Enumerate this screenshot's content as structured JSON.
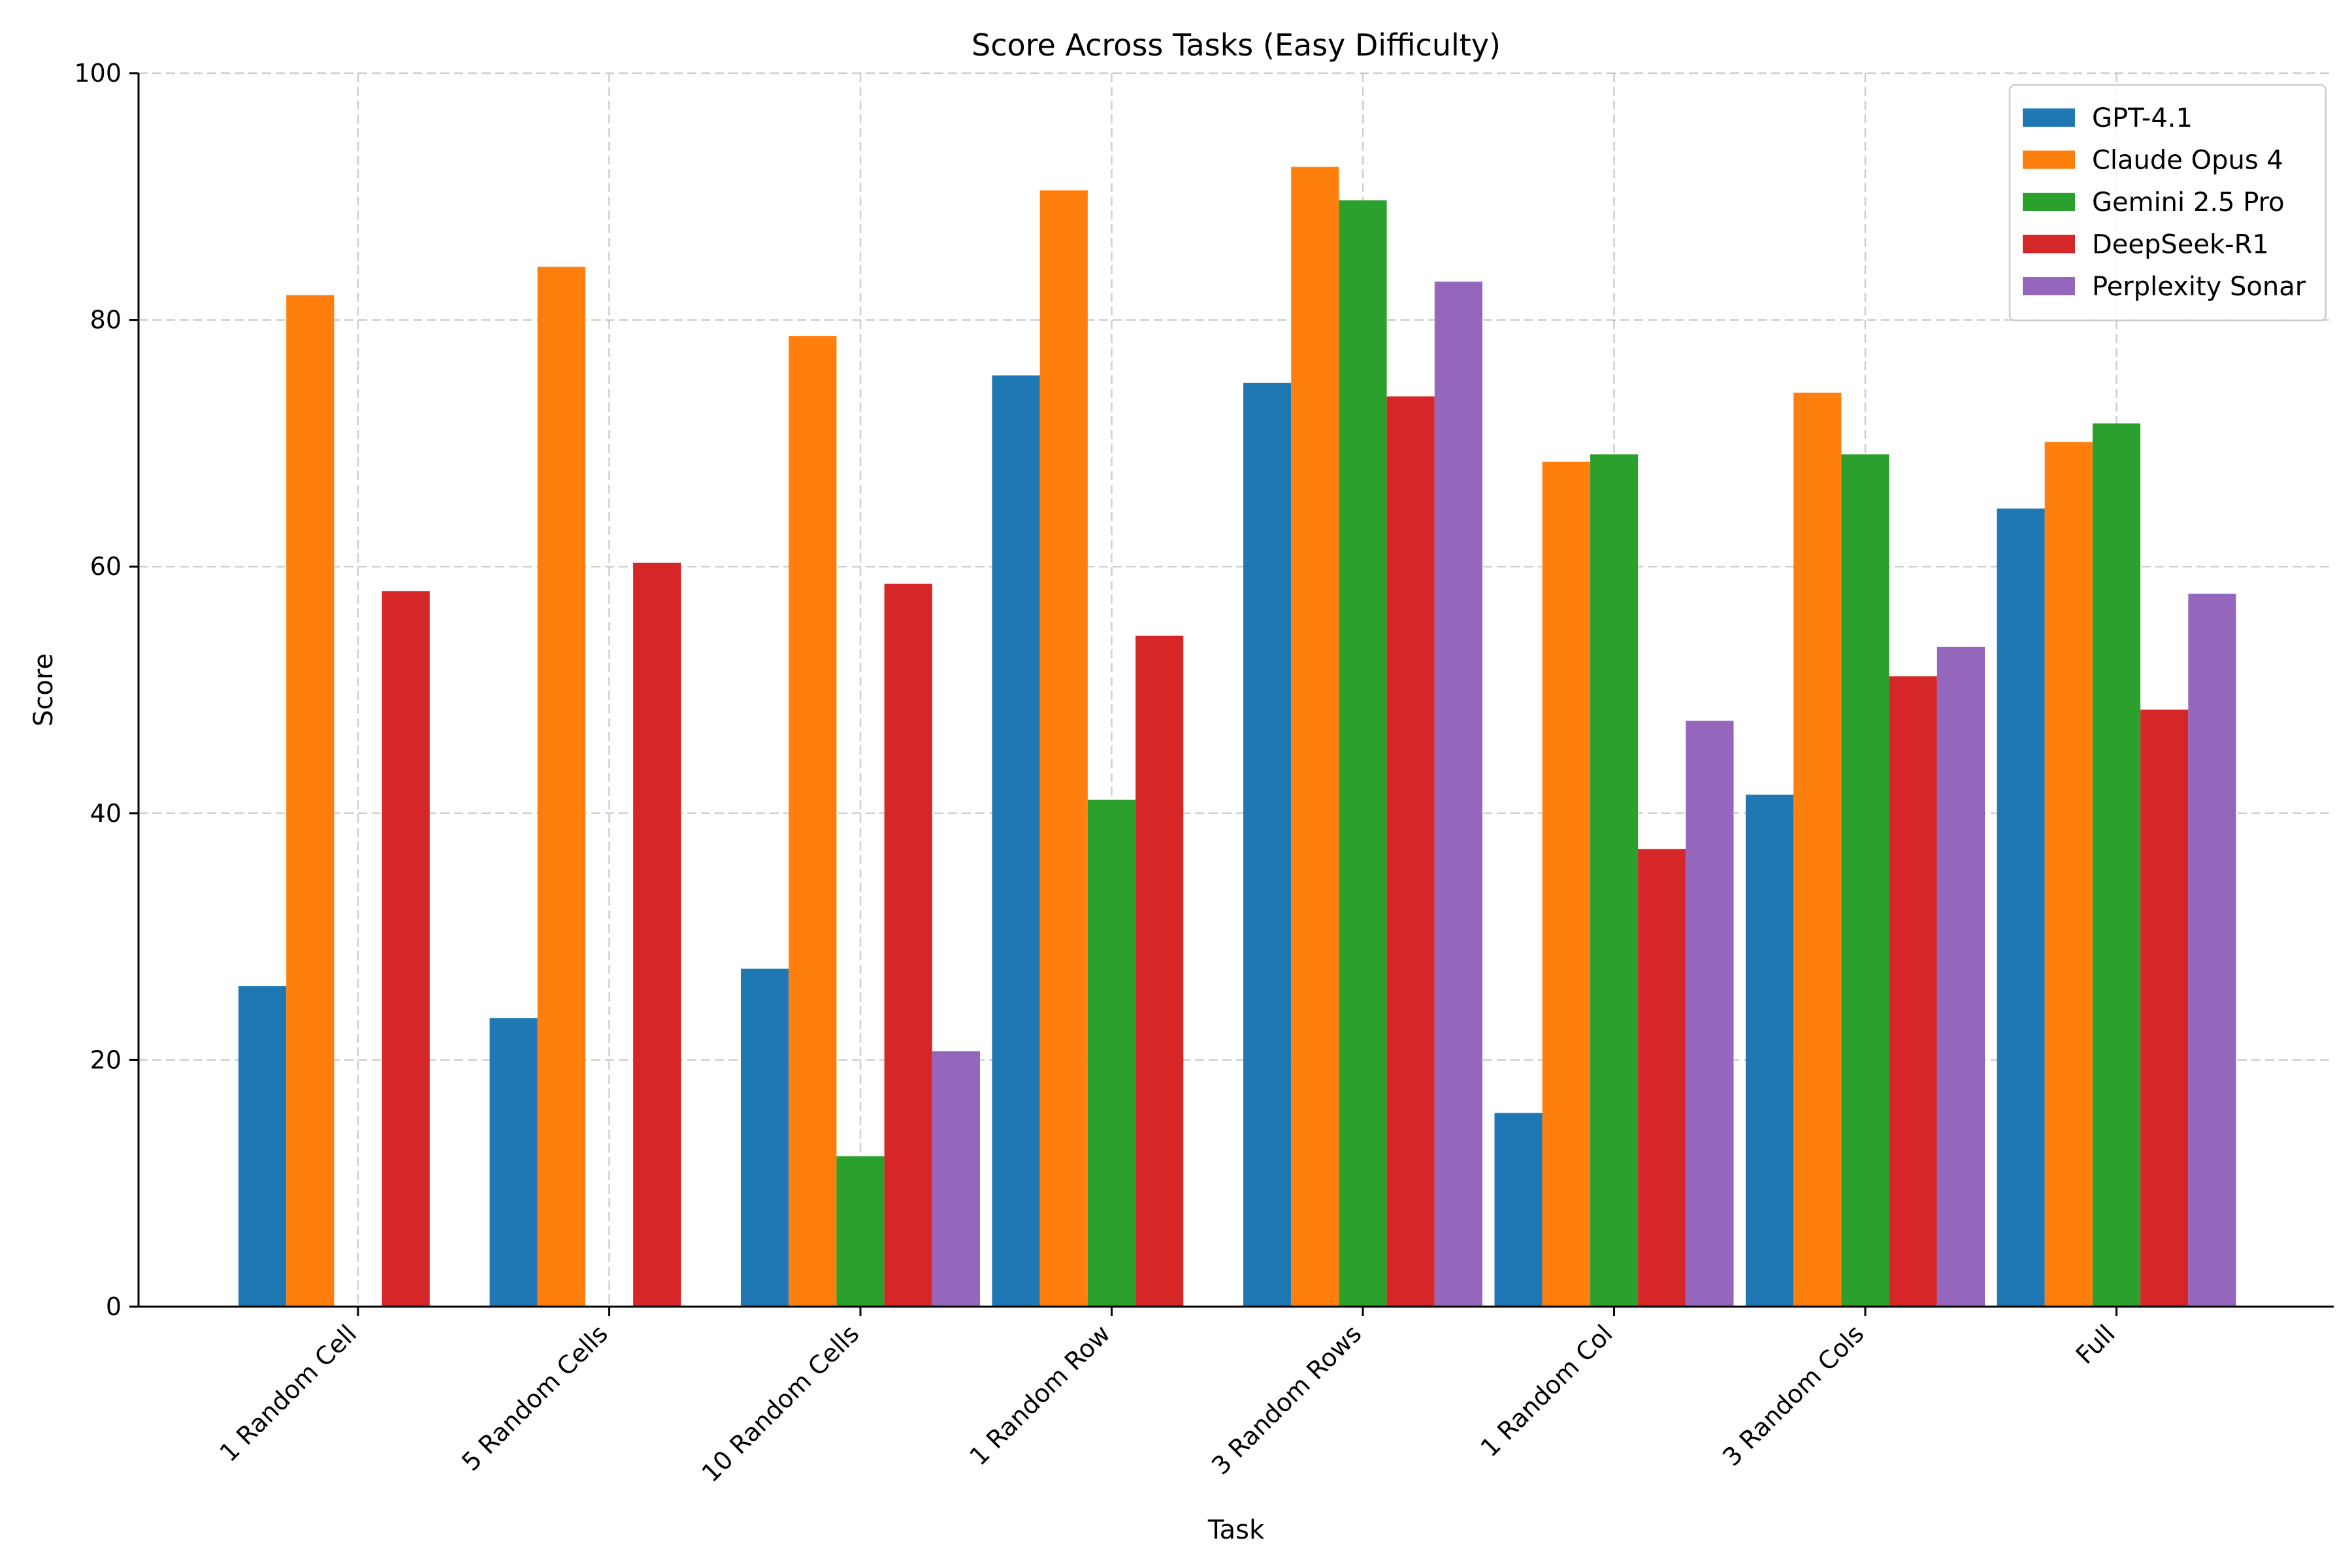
{
  "chart_data": {
    "type": "bar",
    "title": "Score Across Tasks (Easy Difficulty)",
    "xlabel": "Task",
    "ylabel": "Score",
    "ylim": [
      0,
      100
    ],
    "yticks": [
      "0",
      "20",
      "40",
      "60",
      "80",
      "100"
    ],
    "grid": true,
    "legend_position": "top-right",
    "categories": [
      "1 Random Cell",
      "5 Random Cells",
      "10 Random Cells",
      "1 Random Row",
      "3 Random Rows",
      "1 Random Col",
      "3 Random Cols",
      "Full"
    ],
    "series": [
      {
        "name": "GPT-4.1",
        "color": "#1f77b4",
        "values": [
          26.0,
          23.4,
          27.4,
          75.5,
          74.9,
          15.7,
          41.5,
          64.7
        ]
      },
      {
        "name": "Claude Opus 4",
        "color": "#ff7f0e",
        "values": [
          82.0,
          84.3,
          78.7,
          90.5,
          92.4,
          68.5,
          74.1,
          70.1
        ]
      },
      {
        "name": "Gemini 2.5 Pro",
        "color": "#2ca02c",
        "values": [
          0,
          0,
          12.2,
          41.1,
          89.7,
          69.1,
          69.1,
          71.6
        ]
      },
      {
        "name": "DeepSeek-R1",
        "color": "#d62728",
        "values": [
          58.0,
          60.3,
          58.6,
          54.4,
          73.8,
          37.1,
          51.1,
          48.4
        ]
      },
      {
        "name": "Perplexity Sonar",
        "color": "#9467bd",
        "values": [
          0,
          0,
          20.7,
          0,
          83.1,
          47.5,
          53.5,
          57.8
        ]
      }
    ]
  }
}
